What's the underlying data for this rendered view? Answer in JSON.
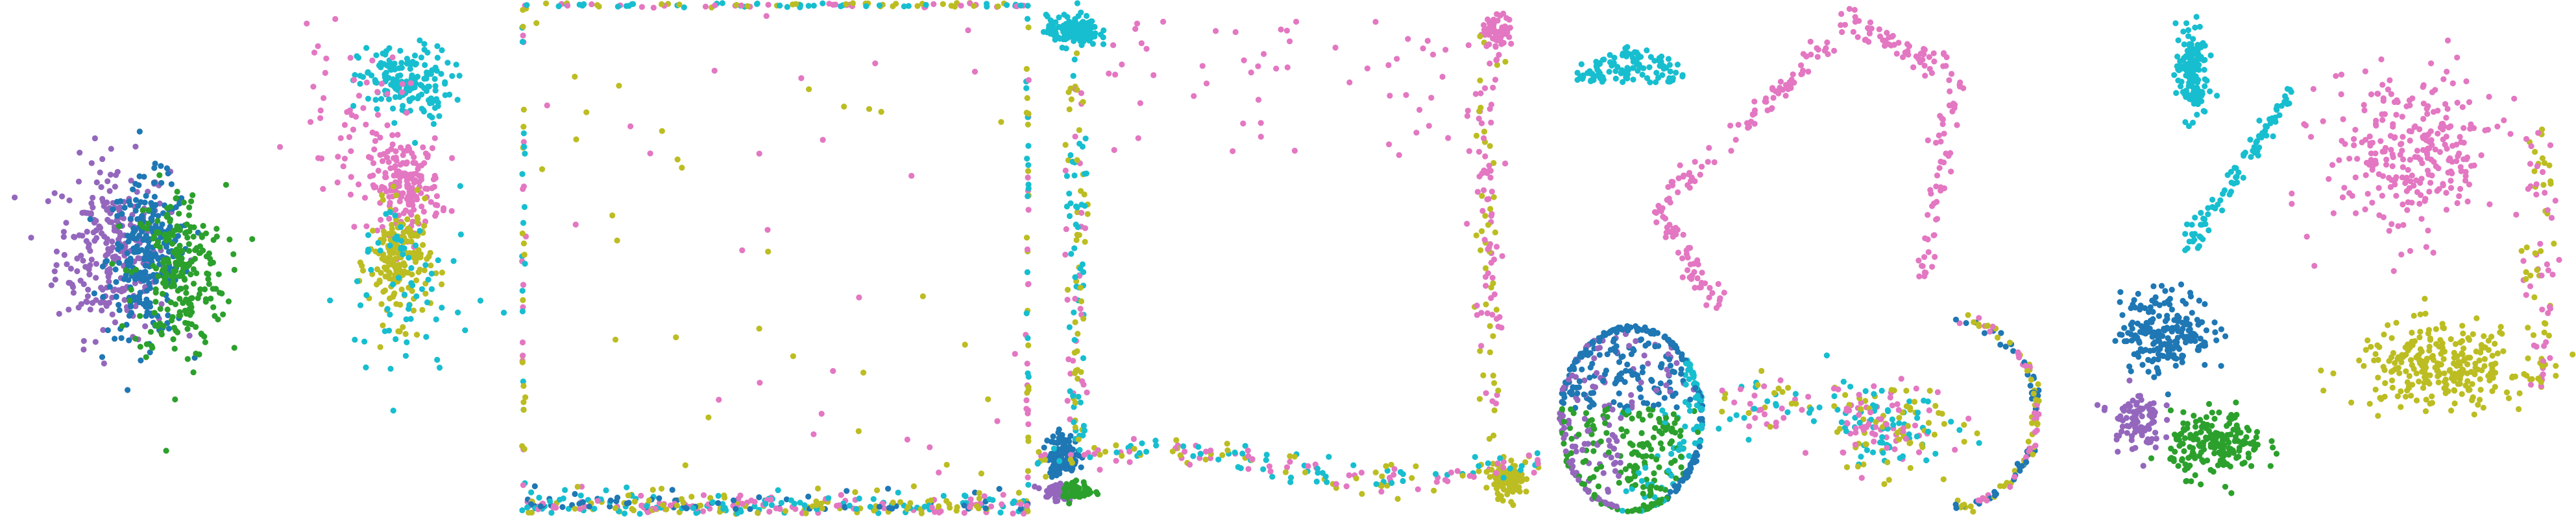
{
  "chart_data": {
    "type": "scatter",
    "title": "",
    "panel_count": 5,
    "axes_visible": false,
    "grid": false,
    "legend": "none",
    "colors": {
      "c0": "#1f77b4",
      "c1": "#2ca02c",
      "c2": "#9467bd",
      "c3": "#bcbd22",
      "c4": "#e377c2",
      "c5": "#17becf"
    },
    "panels": [
      {
        "id": "p1",
        "xlim": [
          0,
          100
        ],
        "ylim": [
          0,
          100
        ],
        "clusters": [
          {
            "color": "c2",
            "cx": 22,
            "cy": 52,
            "sx": 11,
            "sy": 17,
            "n": 260
          },
          {
            "color": "c0",
            "cx": 29,
            "cy": 50,
            "sx": 8,
            "sy": 15,
            "n": 260
          },
          {
            "color": "c1",
            "cx": 35,
            "cy": 47,
            "sx": 9,
            "sy": 17,
            "n": 230
          },
          {
            "color": "c5",
            "cx": 79,
            "cy": 84,
            "sx": 9,
            "sy": 7,
            "n": 170
          },
          {
            "color": "c4",
            "cx": 79,
            "cy": 64,
            "sx": 7,
            "sy": 9,
            "n": 190
          },
          {
            "color": "c3",
            "cx": 78,
            "cy": 49,
            "sx": 6,
            "sy": 11,
            "n": 180
          },
          {
            "color": "c5",
            "cx": 79,
            "cy": 44,
            "sx": 13,
            "sy": 22,
            "n": 70
          },
          {
            "color": "c4",
            "cx": 68,
            "cy": 78,
            "sx": 11,
            "sy": 14,
            "n": 50
          }
        ]
      },
      {
        "id": "p2",
        "xlim": [
          0,
          100
        ],
        "ylim": [
          0,
          100
        ],
        "square_outline": {
          "colors": [
            "c4",
            "c3",
            "c5"
          ],
          "n": 420
        },
        "bottom_band": {
          "colors": [
            "c3",
            "c4",
            "c0",
            "c5"
          ],
          "n": 260
        },
        "scatter_inside": {
          "colors": [
            "c4",
            "c3"
          ],
          "n": 60
        }
      },
      {
        "id": "p3",
        "xlim": [
          0,
          100
        ],
        "ylim": [
          0,
          100
        ],
        "clusters": [
          {
            "color": "c5",
            "cx": 8,
            "cy": 94,
            "sx": 5,
            "sy": 3,
            "n": 150
          },
          {
            "color": "c4",
            "cx": 91,
            "cy": 94,
            "sx": 3,
            "sy": 3,
            "n": 60
          },
          {
            "color": "c0",
            "cx": 6,
            "cy": 12,
            "sx": 3,
            "sy": 4,
            "n": 120
          },
          {
            "color": "c2",
            "cx": 5,
            "cy": 5,
            "sx": 3,
            "sy": 2,
            "n": 60
          },
          {
            "color": "c1",
            "cx": 9,
            "cy": 5,
            "sx": 3,
            "sy": 2,
            "n": 50
          },
          {
            "color": "c3",
            "cx": 93,
            "cy": 7,
            "sx": 3,
            "sy": 3,
            "n": 110
          }
        ],
        "left_column": {
          "colors": [
            "c5",
            "c4",
            "c3"
          ],
          "n": 120
        },
        "right_column": {
          "colors": [
            "c4",
            "c3"
          ],
          "n": 110
        },
        "bottom_band": {
          "colors": [
            "c3",
            "c4",
            "c5"
          ],
          "n": 190
        },
        "top_sparse": {
          "colors": [
            "c4"
          ],
          "n": 60
        }
      },
      {
        "id": "p4",
        "xlim": [
          0,
          100
        ],
        "ylim": [
          0,
          100
        ],
        "circle": {
          "colors": [
            "c0",
            "c2",
            "c1",
            "c5"
          ],
          "n": 650
        },
        "top_left_cluster": {
          "color": "c5",
          "n": 110
        },
        "arc_right": {
          "colors": [
            "c3",
            "c4",
            "c0"
          ],
          "n": 130
        },
        "path_upper": {
          "colors": [
            "c4"
          ],
          "n": 260
        },
        "bottom_right_cluster": {
          "colors": [
            "c3",
            "c5",
            "c4"
          ],
          "n": 170
        }
      },
      {
        "id": "p5",
        "xlim": [
          0,
          100
        ],
        "ylim": [
          0,
          100
        ],
        "clusters": [
          {
            "color": "c5",
            "cx": 25,
            "cy": 86,
            "sx": 3,
            "sy": 9,
            "n": 150
          },
          {
            "color": "c0",
            "cx": 20,
            "cy": 36,
            "sx": 9,
            "sy": 8,
            "n": 210
          },
          {
            "color": "c2",
            "cx": 14,
            "cy": 19,
            "sx": 5,
            "sy": 6,
            "n": 90
          },
          {
            "color": "c1",
            "cx": 30,
            "cy": 14,
            "sx": 9,
            "sy": 6,
            "n": 190
          },
          {
            "color": "c3",
            "cx": 74,
            "cy": 29,
            "sx": 17,
            "sy": 8,
            "n": 280
          },
          {
            "color": "c4",
            "cx": 68,
            "cy": 70,
            "sx": 17,
            "sy": 16,
            "n": 280
          }
        ]
      }
    ]
  }
}
